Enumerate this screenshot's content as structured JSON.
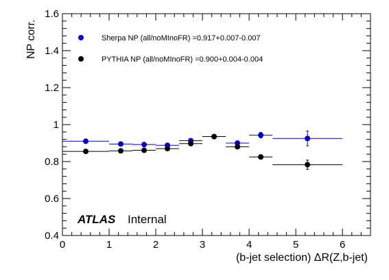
{
  "chart_data": {
    "type": "scatter",
    "title": "",
    "xlabel": "(b-jet selection) ΔR(Z,b-jet)",
    "ylabel": "NP corr.",
    "xlim": [
      0,
      6.6
    ],
    "ylim": [
      0.4,
      1.6
    ],
    "x_ticks": [
      "0",
      "1",
      "2",
      "3",
      "4",
      "5",
      "6"
    ],
    "y_ticks": [
      "0.4",
      "0.6",
      "0.8",
      "1",
      "1.2",
      "1.4",
      "1.6"
    ],
    "grid": false,
    "legend_position": "top-left",
    "series": [
      {
        "name": "Sherpa NP (all/noMInoFR) =0.917+0.007-0.007",
        "color": "#0000cc",
        "points": [
          {
            "x": 0.5,
            "xlo": 0.0,
            "xhi": 1.0,
            "y": 0.91,
            "yerr": 0.012
          },
          {
            "x": 1.25,
            "xlo": 1.0,
            "xhi": 1.5,
            "y": 0.895,
            "yerr": 0.008
          },
          {
            "x": 1.75,
            "xlo": 1.5,
            "xhi": 2.0,
            "y": 0.892,
            "yerr": 0.008
          },
          {
            "x": 2.25,
            "xlo": 2.0,
            "xhi": 2.5,
            "y": 0.888,
            "yerr": 0.008
          },
          {
            "x": 2.75,
            "xlo": 2.5,
            "xhi": 3.0,
            "y": 0.913,
            "yerr": 0.008
          },
          {
            "x": 3.25,
            "xlo": 3.0,
            "xhi": 3.5,
            "y": 0.935,
            "yerr": 0.008
          },
          {
            "x": 3.75,
            "xlo": 3.5,
            "xhi": 4.0,
            "y": 0.9,
            "yerr": 0.01
          },
          {
            "x": 4.25,
            "xlo": 4.0,
            "xhi": 4.5,
            "y": 0.943,
            "yerr": 0.015
          },
          {
            "x": 5.25,
            "xlo": 4.5,
            "xhi": 6.0,
            "y": 0.925,
            "yerr": 0.04
          }
        ]
      },
      {
        "name": "PYTHIA NP (all/noMInoFR) =0.900+0.004-0.004",
        "color": "#000000",
        "points": [
          {
            "x": 0.5,
            "xlo": 0.0,
            "xhi": 1.0,
            "y": 0.855,
            "yerr": 0.008
          },
          {
            "x": 1.25,
            "xlo": 1.0,
            "xhi": 1.5,
            "y": 0.858,
            "yerr": 0.006
          },
          {
            "x": 1.75,
            "xlo": 1.5,
            "xhi": 2.0,
            "y": 0.861,
            "yerr": 0.006
          },
          {
            "x": 2.25,
            "xlo": 2.0,
            "xhi": 2.5,
            "y": 0.87,
            "yerr": 0.006
          },
          {
            "x": 2.75,
            "xlo": 2.5,
            "xhi": 3.0,
            "y": 0.897,
            "yerr": 0.006
          },
          {
            "x": 3.25,
            "xlo": 3.0,
            "xhi": 3.5,
            "y": 0.935,
            "yerr": 0.006
          },
          {
            "x": 3.75,
            "xlo": 3.5,
            "xhi": 4.0,
            "y": 0.88,
            "yerr": 0.008
          },
          {
            "x": 4.25,
            "xlo": 4.0,
            "xhi": 4.5,
            "y": 0.825,
            "yerr": 0.008
          },
          {
            "x": 5.25,
            "xlo": 4.5,
            "xhi": 6.0,
            "y": 0.783,
            "yerr": 0.025
          }
        ]
      }
    ],
    "annotations": {
      "experiment": "ATLAS",
      "status": "Internal"
    }
  }
}
